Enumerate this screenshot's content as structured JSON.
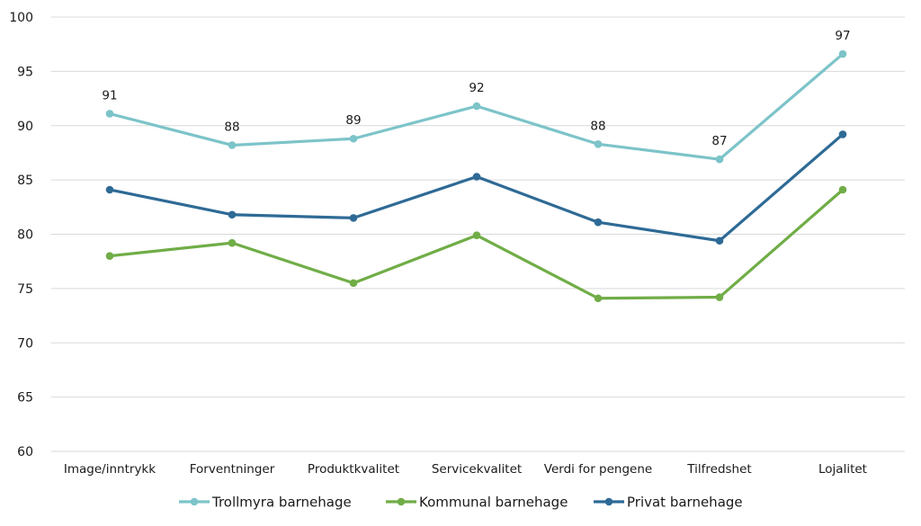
{
  "chart_data": {
    "type": "line",
    "title": "",
    "xlabel": "",
    "ylabel": "",
    "ylim": [
      60,
      100
    ],
    "yticks": [
      "60",
      "65",
      "70",
      "75",
      "80",
      "85",
      "90",
      "95",
      "100"
    ],
    "grid": true,
    "legend_position": "bottom",
    "categories": [
      "Image/inntrykk",
      "Forventninger",
      "Produktkvalitet",
      "Servicekvalitet",
      "Verdi for pengene",
      "Tilfredshet",
      "Lojalitet"
    ],
    "series": [
      {
        "name": "Trollmyra barnehage",
        "color": "#7cc4c9",
        "values": [
          91.1,
          88.2,
          88.8,
          91.8,
          88.3,
          86.9,
          96.6
        ],
        "data_labels": [
          "91",
          "88",
          "89",
          "92",
          "88",
          "87",
          "97"
        ]
      },
      {
        "name": "Kommunal barnehage",
        "color": "#70ad47",
        "values": [
          78.0,
          79.2,
          75.5,
          79.9,
          74.1,
          74.2,
          84.1
        ],
        "data_labels": []
      },
      {
        "name": "Privat barnehage",
        "color": "#2e6a96",
        "values": [
          84.1,
          81.8,
          81.5,
          85.3,
          81.1,
          79.4,
          89.2
        ],
        "data_labels": []
      }
    ]
  }
}
